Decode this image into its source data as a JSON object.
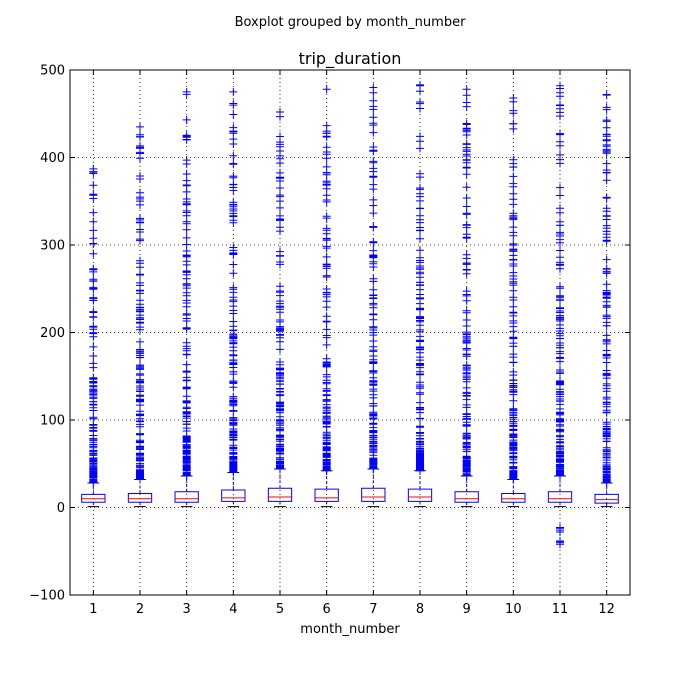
{
  "chart_data": {
    "type": "boxplot",
    "suptitle": "Boxplot grouped by month_number",
    "title": "trip_duration",
    "xlabel": "month_number",
    "ylabel": "",
    "ylim": [
      -100,
      500
    ],
    "yticks": [
      -100,
      0,
      100,
      200,
      300,
      400,
      500
    ],
    "grid": true,
    "colors": {
      "box": "#0000ff",
      "median": "#ff0000",
      "flier": "#0000ff",
      "grid": "#000000"
    },
    "categories": [
      "1",
      "2",
      "3",
      "4",
      "5",
      "6",
      "7",
      "8",
      "9",
      "10",
      "11",
      "12"
    ],
    "boxes": [
      {
        "q1": 6,
        "median": 10,
        "q3": 15,
        "whislo": 1,
        "whishi": 28,
        "flier_max": 387,
        "flier_min": null
      },
      {
        "q1": 6,
        "median": 10,
        "q3": 16,
        "whislo": 1,
        "whishi": 32,
        "flier_max": 435,
        "flier_min": null
      },
      {
        "q1": 6,
        "median": 10,
        "q3": 18,
        "whislo": 1,
        "whishi": 36,
        "flier_max": 475,
        "flier_min": null
      },
      {
        "q1": 7,
        "median": 11,
        "q3": 20,
        "whislo": 1,
        "whishi": 40,
        "flier_max": 475,
        "flier_min": null
      },
      {
        "q1": 7,
        "median": 12,
        "q3": 22,
        "whislo": 1,
        "whishi": 44,
        "flier_max": 452,
        "flier_min": null
      },
      {
        "q1": 7,
        "median": 11,
        "q3": 21,
        "whislo": 1,
        "whishi": 42,
        "flier_max": 478,
        "flier_min": null
      },
      {
        "q1": 7,
        "median": 12,
        "q3": 22,
        "whislo": 1,
        "whishi": 44,
        "flier_max": 480,
        "flier_min": null
      },
      {
        "q1": 7,
        "median": 12,
        "q3": 21,
        "whislo": 1,
        "whishi": 42,
        "flier_max": 483,
        "flier_min": null
      },
      {
        "q1": 6,
        "median": 10,
        "q3": 18,
        "whislo": 1,
        "whishi": 36,
        "flier_max": 478,
        "flier_min": null
      },
      {
        "q1": 6,
        "median": 10,
        "q3": 16,
        "whislo": 1,
        "whishi": 32,
        "flier_max": 468,
        "flier_min": null
      },
      {
        "q1": 6,
        "median": 10,
        "q3": 18,
        "whislo": 1,
        "whishi": 36,
        "flier_max": 482,
        "flier_min": -42
      },
      {
        "q1": 5,
        "median": 9,
        "q3": 15,
        "whislo": 1,
        "whishi": 28,
        "flier_max": 472,
        "flier_min": null
      }
    ]
  }
}
